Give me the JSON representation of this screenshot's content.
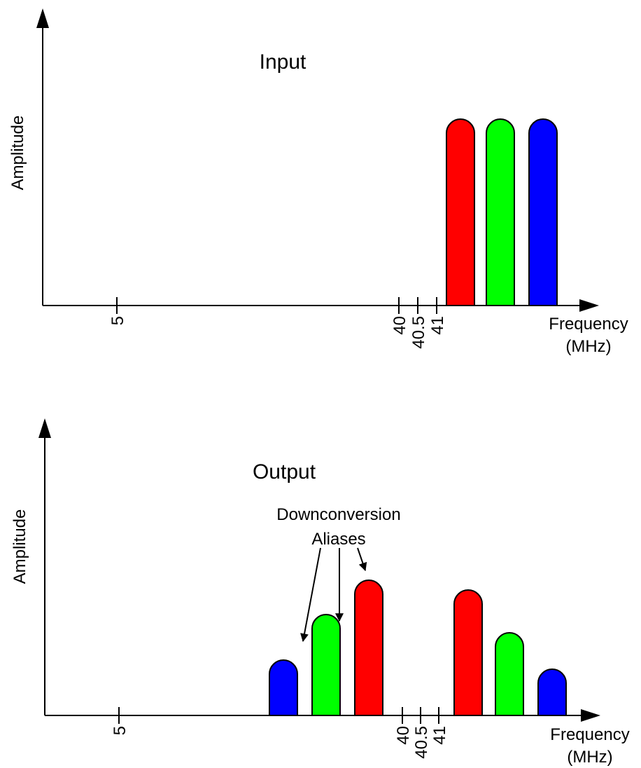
{
  "colors": {
    "red": "#ff0000",
    "green": "#00ff00",
    "blue": "#0000ff"
  },
  "input_panel": {
    "title": "Input",
    "ylabel": "Amplitude",
    "xlabel_line1": "Frequency",
    "xlabel_line2": "(MHz)",
    "ticks": [
      "5",
      "40",
      "40.5",
      "41"
    ]
  },
  "output_panel": {
    "title": "Output",
    "ylabel": "Amplitude",
    "xlabel_line1": "Frequency",
    "xlabel_line2": "(MHz)",
    "ticks": [
      "5",
      "40",
      "40.5",
      "41"
    ],
    "annotation_line1": "Downconversion",
    "annotation_line2": "Aliases"
  }
}
